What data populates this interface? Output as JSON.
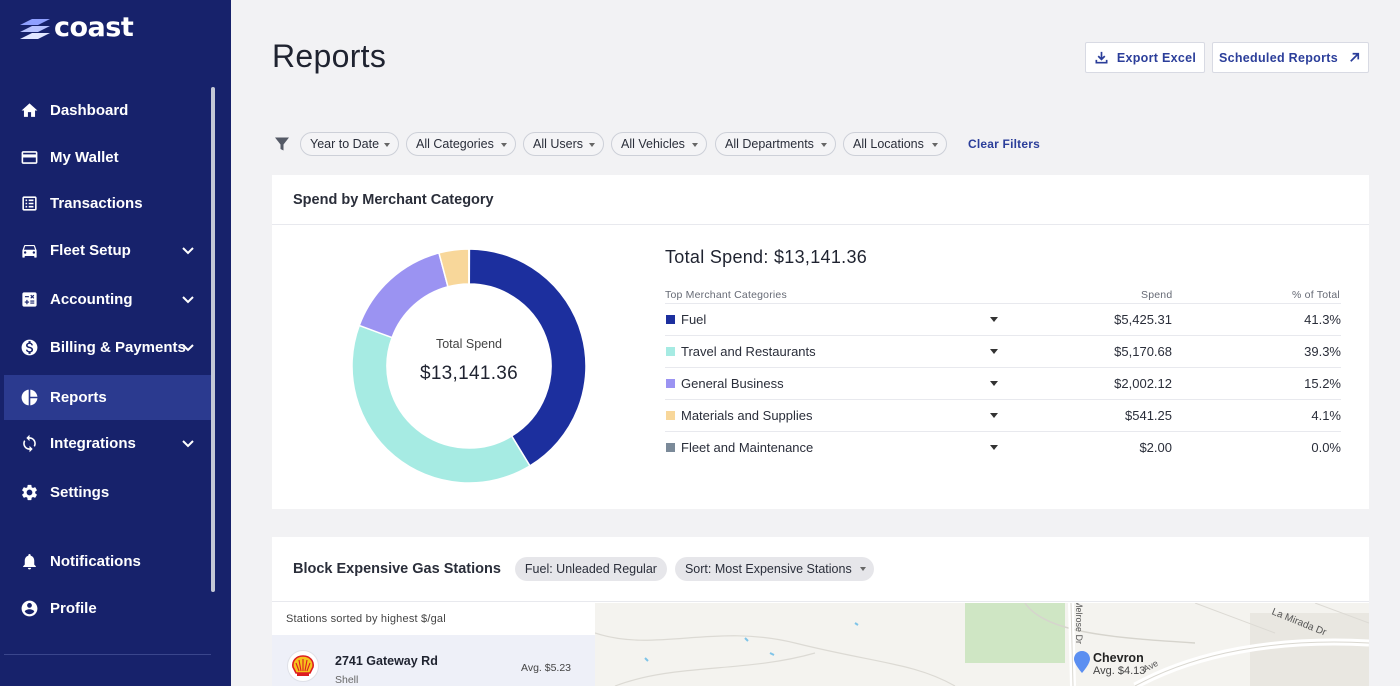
{
  "brand": {
    "name": "coast"
  },
  "nav": {
    "items": [
      {
        "label": "Dashboard",
        "icon": "home-icon"
      },
      {
        "label": "My Wallet",
        "icon": "wallet-icon"
      },
      {
        "label": "Transactions",
        "icon": "receipt-icon"
      },
      {
        "label": "Fleet Setup",
        "icon": "car-icon",
        "expandable": true
      },
      {
        "label": "Accounting",
        "icon": "calculator-icon",
        "expandable": true
      },
      {
        "label": "Billing & Payments",
        "icon": "dollar-icon",
        "expandable": true
      },
      {
        "label": "Reports",
        "icon": "pie-chart-icon",
        "active": true
      },
      {
        "label": "Integrations",
        "icon": "sync-icon",
        "expandable": true
      },
      {
        "label": "Settings",
        "icon": "gear-icon"
      },
      {
        "label": "Notifications",
        "icon": "bell-icon"
      },
      {
        "label": "Profile",
        "icon": "account-icon"
      }
    ]
  },
  "header": {
    "title": "Reports",
    "export_label": "Export Excel",
    "scheduled_label": "Scheduled Reports"
  },
  "filters": {
    "date": "Year to Date",
    "categories": "All Categories",
    "users": "All Users",
    "vehicles": "All Vehicles",
    "departments": "All Departments",
    "locations": "All Locations",
    "clear_label": "Clear Filters"
  },
  "spend_card": {
    "title": "Spend by Merchant Category",
    "donut_label": "Total Spend",
    "donut_value": "$13,141.36",
    "total_text": "Total Spend: $13,141.36",
    "col_category": "Top Merchant Categories",
    "col_spend": "Spend",
    "col_pct": "% of Total",
    "rows": [
      {
        "name": "Fuel",
        "spend": "$5,425.31",
        "pct": "41.3%",
        "color": "#1c2f9e"
      },
      {
        "name": "Travel and Restaurants",
        "spend": "$5,170.68",
        "pct": "39.3%",
        "color": "#a6ebe3"
      },
      {
        "name": "General Business",
        "spend": "$2,002.12",
        "pct": "15.2%",
        "color": "#9b93f2"
      },
      {
        "name": "Materials and Supplies",
        "spend": "$541.25",
        "pct": "4.1%",
        "color": "#f8d79a"
      },
      {
        "name": "Fleet and Maintenance",
        "spend": "$2.00",
        "pct": "0.0%",
        "color": "#7b8a99"
      }
    ]
  },
  "chart_data": {
    "type": "pie",
    "categories": [
      "Fuel",
      "Travel and Restaurants",
      "General Business",
      "Materials and Supplies",
      "Fleet and Maintenance"
    ],
    "values": [
      5425.31,
      5170.68,
      2002.12,
      541.25,
      2.0
    ],
    "colors": [
      "#1c2f9e",
      "#a6ebe3",
      "#9b93f2",
      "#f8d79a",
      "#7b8a99"
    ],
    "title": "Spend by Merchant Category",
    "legend": "right"
  },
  "gas_card": {
    "title": "Block Expensive Gas Stations",
    "fuel_pill": "Fuel: Unleaded Regular",
    "sort_pill": "Sort: Most Expensive Stations",
    "list_caption": "Stations sorted by highest $/gal",
    "station": {
      "address": "2741 Gateway Rd",
      "brand": "Shell",
      "avg": "Avg. $5.23"
    },
    "map_labels": {
      "chevron": "Chevron",
      "chevron_avg": "Avg. $4.13",
      "la_mirada": "La Mirada Dr",
      "melrose": "Melrose Dr",
      "avenue": "Ave"
    }
  }
}
